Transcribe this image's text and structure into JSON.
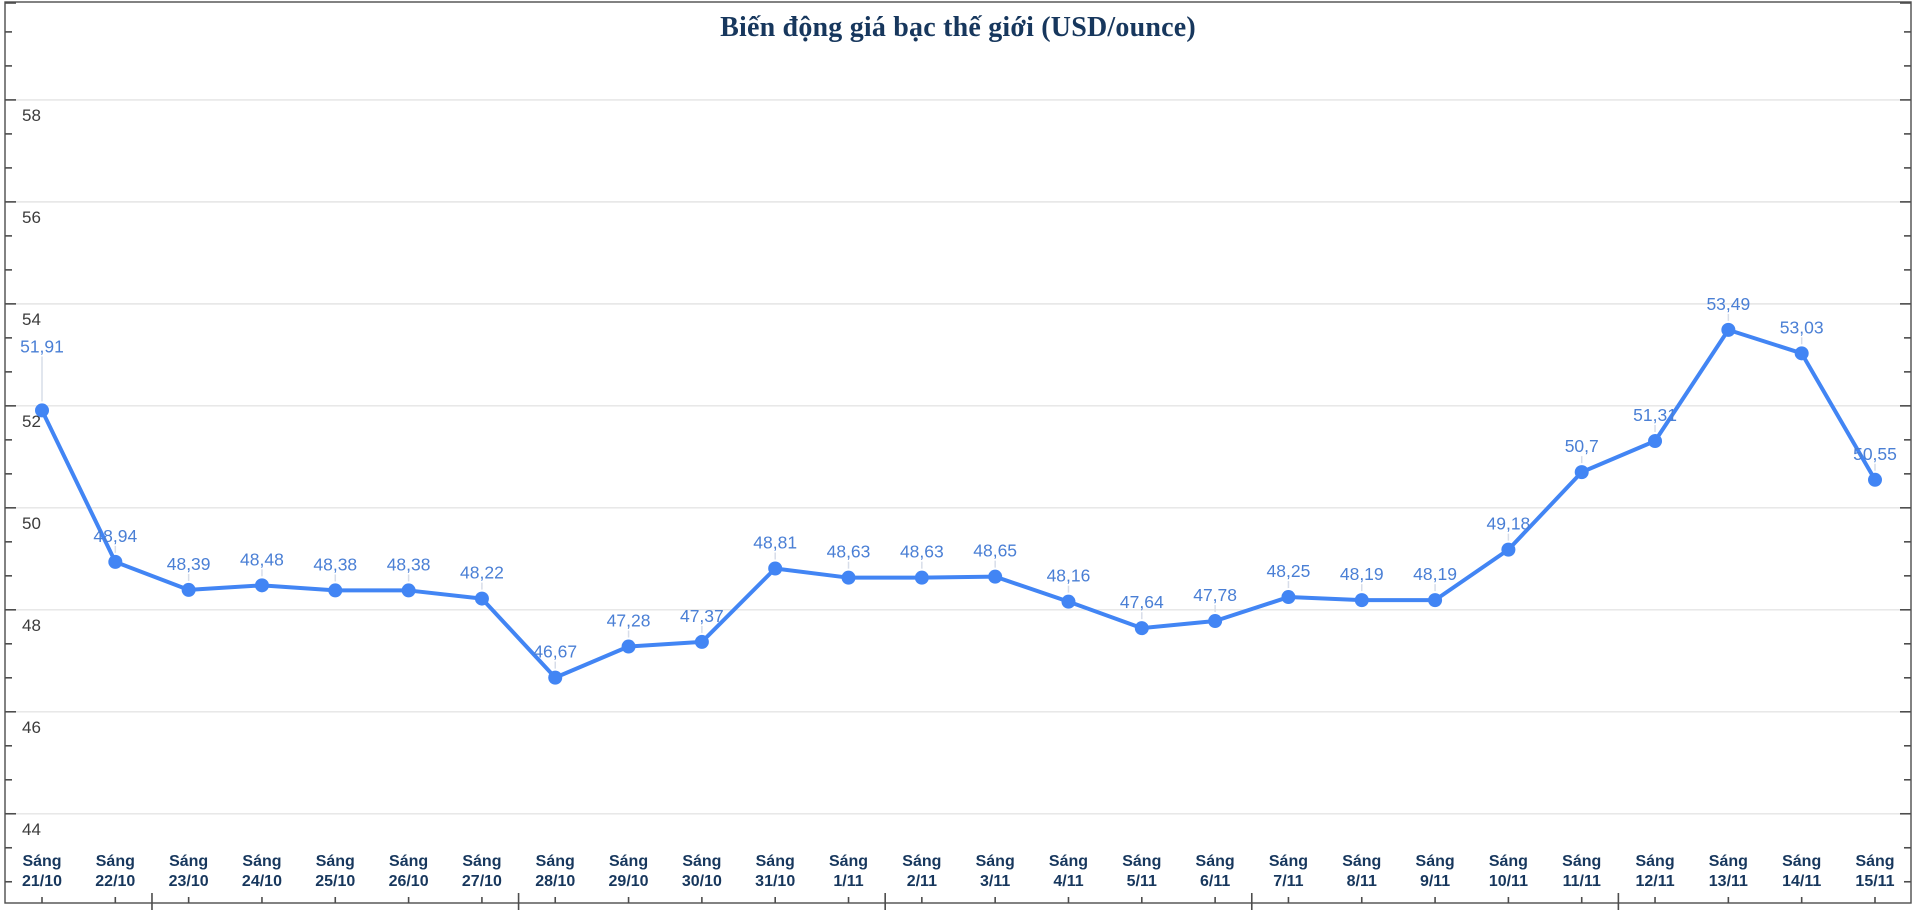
{
  "chart_data": {
    "type": "line",
    "title": "Biến động giá bạc thế giới (USD/ounce)",
    "x_prefix": "Sáng",
    "categories": [
      "21/10",
      "22/10",
      "23/10",
      "24/10",
      "25/10",
      "26/10",
      "27/10",
      "28/10",
      "29/10",
      "30/10",
      "31/10",
      "1/11",
      "2/11",
      "3/11",
      "4/11",
      "5/11",
      "6/11",
      "7/11",
      "8/11",
      "9/11",
      "10/11",
      "11/11",
      "12/11",
      "13/11",
      "14/11",
      "15/11"
    ],
    "values": [
      51.91,
      48.94,
      48.39,
      48.48,
      48.38,
      48.38,
      48.22,
      46.67,
      47.28,
      47.37,
      48.81,
      48.63,
      48.63,
      48.65,
      48.16,
      47.64,
      47.78,
      48.25,
      48.19,
      48.19,
      49.18,
      50.7,
      51.31,
      53.49,
      53.03,
      50.55
    ],
    "value_labels": [
      "51,91",
      "48,94",
      "48,39",
      "48,48",
      "48,38",
      "48,38",
      "48,22",
      "46,67",
      "47,28",
      "47,37",
      "48,81",
      "48,63",
      "48,63",
      "48,65",
      "48,16",
      "47,64",
      "47,78",
      "48,25",
      "48,19",
      "48,19",
      "49,18",
      "50,7",
      "51,31",
      "53,49",
      "53,03",
      "50,55"
    ],
    "y_ticks": [
      44,
      46,
      48,
      50,
      52,
      54,
      56,
      58
    ],
    "ylim": [
      42.25,
      59.92
    ],
    "grid": true,
    "legend": "none",
    "colors": {
      "line": "#4285f4",
      "point": "#4285f4",
      "value_label": "#4a7fd5",
      "title": "#17375d",
      "x_label": "#17375d",
      "y_label": "#3b3b3b",
      "grid": "#e4e4e4",
      "axis": "#4d4d4d"
    }
  }
}
